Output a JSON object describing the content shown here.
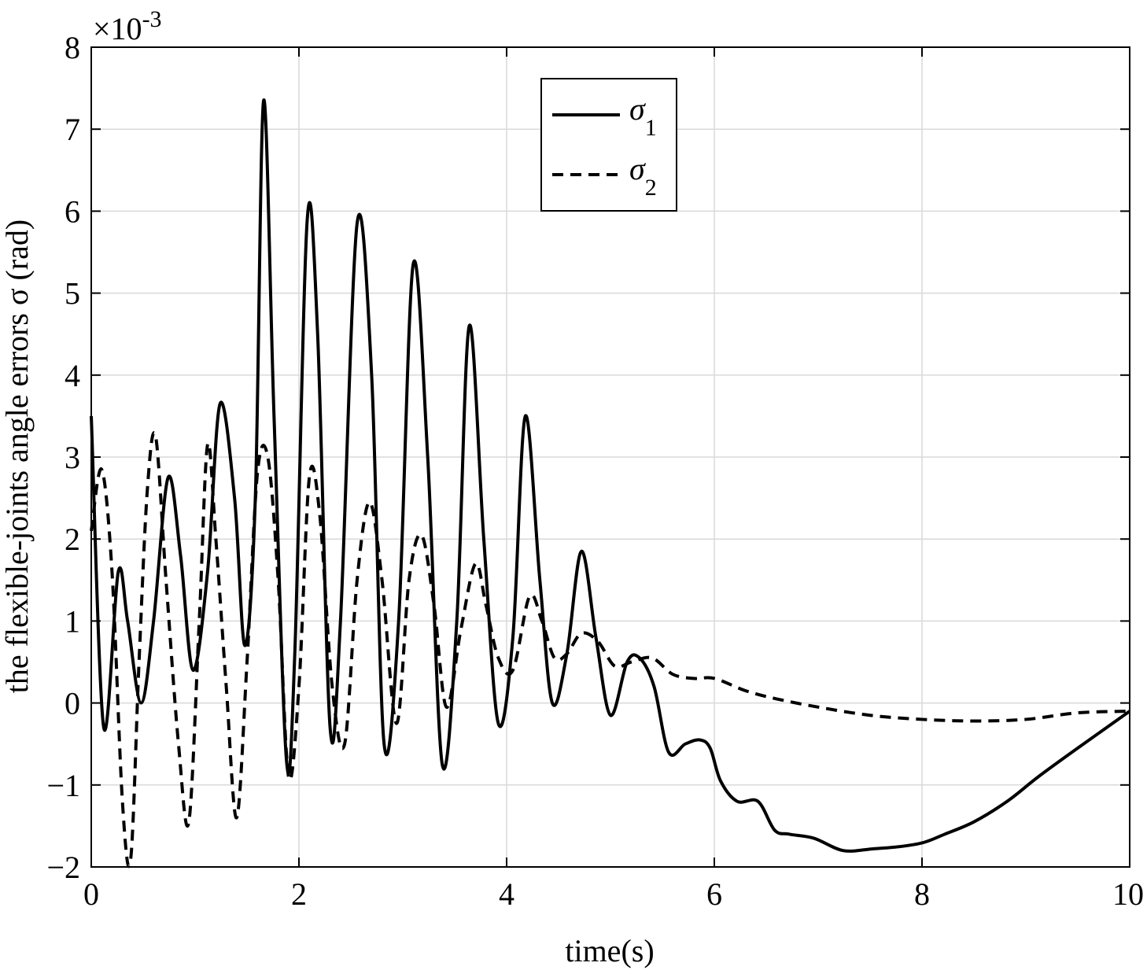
{
  "chart_data": {
    "type": "line",
    "title": "",
    "xlabel": "time(s)",
    "ylabel": "the flexible-joints angle errors σ (rad)",
    "y_exponent_label": "×10",
    "y_exponent_power": "-3",
    "xlim": [
      0,
      10
    ],
    "ylim": [
      -2,
      8
    ],
    "xticks": [
      0,
      2,
      4,
      6,
      8,
      10
    ],
    "xtick_labels": [
      "0",
      "2",
      "4",
      "6",
      "8",
      "10"
    ],
    "yticks": [
      -2,
      -1,
      0,
      1,
      2,
      3,
      4,
      5,
      6,
      7,
      8
    ],
    "ytick_labels": [
      "−2",
      "−1",
      "0",
      "1",
      "2",
      "3",
      "4",
      "5",
      "6",
      "7",
      "8"
    ],
    "grid": true,
    "legend_position": "top-center",
    "series": [
      {
        "name": "σ",
        "subscript": "1",
        "style": "solid",
        "color": "#000000",
        "x": [
          0.0,
          0.12,
          0.26,
          0.35,
          0.48,
          0.6,
          0.74,
          0.86,
          0.98,
          1.12,
          1.24,
          1.38,
          1.48,
          1.58,
          1.66,
          1.76,
          1.88,
          1.96,
          2.08,
          2.18,
          2.3,
          2.4,
          2.56,
          2.7,
          2.82,
          2.96,
          3.1,
          3.24,
          3.38,
          3.52,
          3.64,
          3.78,
          3.92,
          4.06,
          4.18,
          4.32,
          4.44,
          4.58,
          4.72,
          4.86,
          5.0,
          5.16,
          5.28,
          5.42,
          5.56,
          5.72,
          5.86,
          5.96,
          6.06,
          6.22,
          6.42,
          6.58,
          6.72,
          6.96,
          7.24,
          7.52,
          7.8,
          8.02,
          8.22,
          8.5,
          8.82,
          9.12,
          9.5,
          10.0
        ],
        "y": [
          3.5,
          -0.3,
          1.6,
          1.0,
          0.0,
          1.0,
          2.75,
          1.8,
          0.4,
          1.6,
          3.65,
          2.5,
          0.7,
          2.5,
          7.35,
          3.5,
          -0.7,
          0.6,
          5.9,
          4.5,
          -0.3,
          1.0,
          5.85,
          4.0,
          -0.5,
          1.0,
          5.35,
          3.0,
          -0.75,
          1.0,
          4.6,
          2.0,
          -0.25,
          0.8,
          3.5,
          1.5,
          0.0,
          0.6,
          1.85,
          0.8,
          -0.15,
          0.5,
          0.55,
          0.2,
          -0.6,
          -0.5,
          -0.45,
          -0.55,
          -0.95,
          -1.2,
          -1.2,
          -1.55,
          -1.6,
          -1.65,
          -1.8,
          -1.78,
          -1.75,
          -1.7,
          -1.6,
          -1.45,
          -1.2,
          -0.9,
          -0.55,
          -0.1
        ]
      },
      {
        "name": "σ",
        "subscript": "2",
        "style": "dashed",
        "color": "#000000",
        "x": [
          0.0,
          0.1,
          0.2,
          0.3,
          0.38,
          0.46,
          0.54,
          0.62,
          0.72,
          0.84,
          0.94,
          1.04,
          1.12,
          1.2,
          1.3,
          1.4,
          1.5,
          1.6,
          1.7,
          1.8,
          1.9,
          2.0,
          2.1,
          2.2,
          2.32,
          2.44,
          2.56,
          2.68,
          2.8,
          2.94,
          3.06,
          3.18,
          3.3,
          3.42,
          3.56,
          3.7,
          3.8,
          3.92,
          4.06,
          4.22,
          4.34,
          4.46,
          4.58,
          4.72,
          4.88,
          5.04,
          5.2,
          5.4,
          5.6,
          5.8,
          6.0,
          6.3,
          6.6,
          7.0,
          7.5,
          8.0,
          8.5,
          9.0,
          9.5,
          10.0
        ],
        "y": [
          2.1,
          2.85,
          1.6,
          -1.2,
          -1.9,
          0.5,
          2.6,
          3.25,
          1.5,
          -0.5,
          -1.45,
          1.0,
          3.15,
          2.0,
          0.2,
          -1.4,
          0.5,
          2.8,
          3.0,
          1.5,
          -0.9,
          0.2,
          2.75,
          2.3,
          0.2,
          -0.5,
          1.5,
          2.45,
          1.5,
          -0.25,
          1.5,
          2.05,
          1.2,
          -0.05,
          0.9,
          1.7,
          1.2,
          0.55,
          0.4,
          1.3,
          1.0,
          0.55,
          0.6,
          0.85,
          0.75,
          0.45,
          0.5,
          0.55,
          0.35,
          0.3,
          0.3,
          0.15,
          0.05,
          -0.05,
          -0.15,
          -0.2,
          -0.22,
          -0.2,
          -0.12,
          -0.1
        ]
      }
    ]
  }
}
